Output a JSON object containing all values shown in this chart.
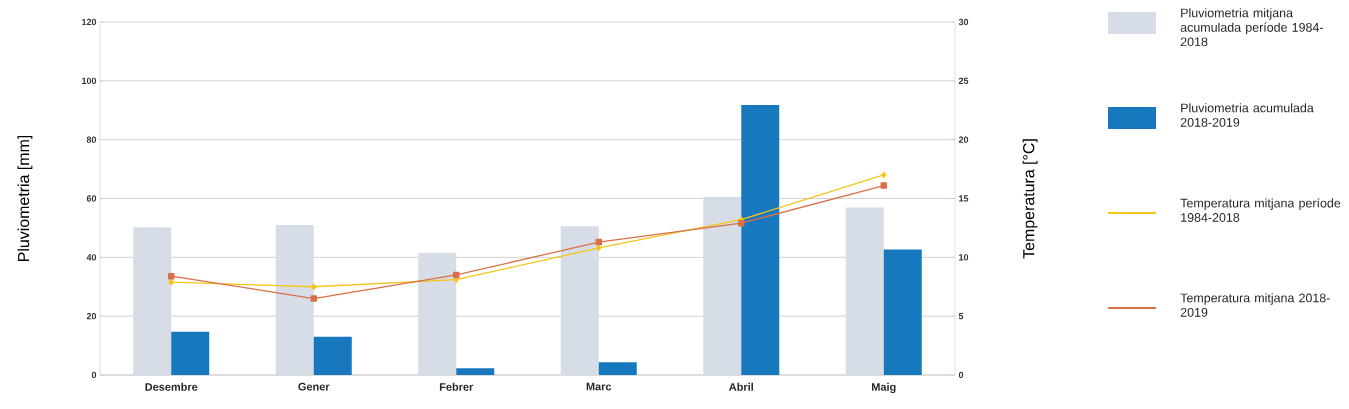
{
  "chart_data": {
    "type": "bar",
    "categories": [
      "Desembre",
      "Gener",
      "Febrer",
      "Marc",
      "Abril",
      "Maig"
    ],
    "ylabel": "Pluviometria [mm]",
    "y2label": "Temperatura [°C]",
    "ylim": [
      0,
      120
    ],
    "yticks": [
      0,
      20,
      40,
      60,
      80,
      100,
      120
    ],
    "y2lim": [
      0,
      30
    ],
    "y2ticks": [
      0,
      5,
      10,
      15,
      20,
      25,
      30
    ],
    "grid": "y",
    "legend": "right",
    "series": [
      {
        "name": "Pluviometria mitjana acumulada període 1984-2018",
        "color": "#d6dde6",
        "values": [
          50.2,
          51,
          41.6,
          50.6,
          60.5,
          56.9
        ]
      },
      {
        "name": "Pluviometria acumulada 2018-2019",
        "color": "#1878bd",
        "values": [
          14.7,
          13,
          2.3,
          4.3,
          91.8,
          42.7
        ]
      },
      {
        "name": "Temperatura mitjana període 1984-2018",
        "type": "line",
        "axis": "y2",
        "marker": "diamond",
        "color": "#f5c518",
        "values": [
          7.9,
          7.5,
          8.1,
          10.8,
          13.2,
          17.0
        ]
      },
      {
        "name": "Temperatura mitjana 2018-2019",
        "type": "line",
        "axis": "y2",
        "marker": "square",
        "color": "#d9704a",
        "values": [
          8.4,
          6.5,
          8.5,
          11.3,
          12.9,
          16.1
        ]
      }
    ]
  }
}
